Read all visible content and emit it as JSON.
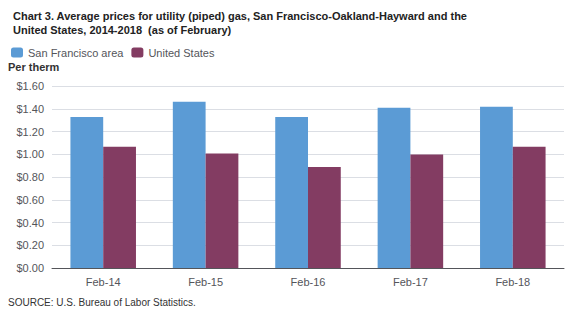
{
  "chart_data": {
    "type": "bar",
    "title": "Chart 3. Average prices for utility (piped) gas, San Francisco-Oakland-Hayward and the\nUnited States, 2014-2018  (as of February)",
    "y_label": "Per therm",
    "source": "SOURCE: U.S. Bureau of Labor Statistics.",
    "categories": [
      "Feb-14",
      "Feb-15",
      "Feb-16",
      "Feb-17",
      "Feb-18"
    ],
    "series": [
      {
        "name": "San Francisco area",
        "color": "#5B9BD5",
        "values": [
          1.327,
          1.461,
          1.327,
          1.408,
          1.417
        ]
      },
      {
        "name": "United States",
        "color": "#833C62",
        "values": [
          1.067,
          1.007,
          0.887,
          0.997,
          1.067
        ]
      }
    ],
    "ylim": [
      0,
      1.6
    ],
    "yticks": [
      {
        "value": 0.0,
        "label": "$0.00"
      },
      {
        "value": 0.2,
        "label": "$0.20"
      },
      {
        "value": 0.4,
        "label": "$0.40"
      },
      {
        "value": 0.6,
        "label": "$0.60"
      },
      {
        "value": 0.8,
        "label": "$0.80"
      },
      {
        "value": 1.0,
        "label": "$1.00"
      },
      {
        "value": 1.2,
        "label": "$1.20"
      },
      {
        "value": 1.4,
        "label": "$1.40"
      },
      {
        "value": 1.6,
        "label": "$1.60"
      }
    ],
    "grid": true,
    "legend": "upper left"
  }
}
